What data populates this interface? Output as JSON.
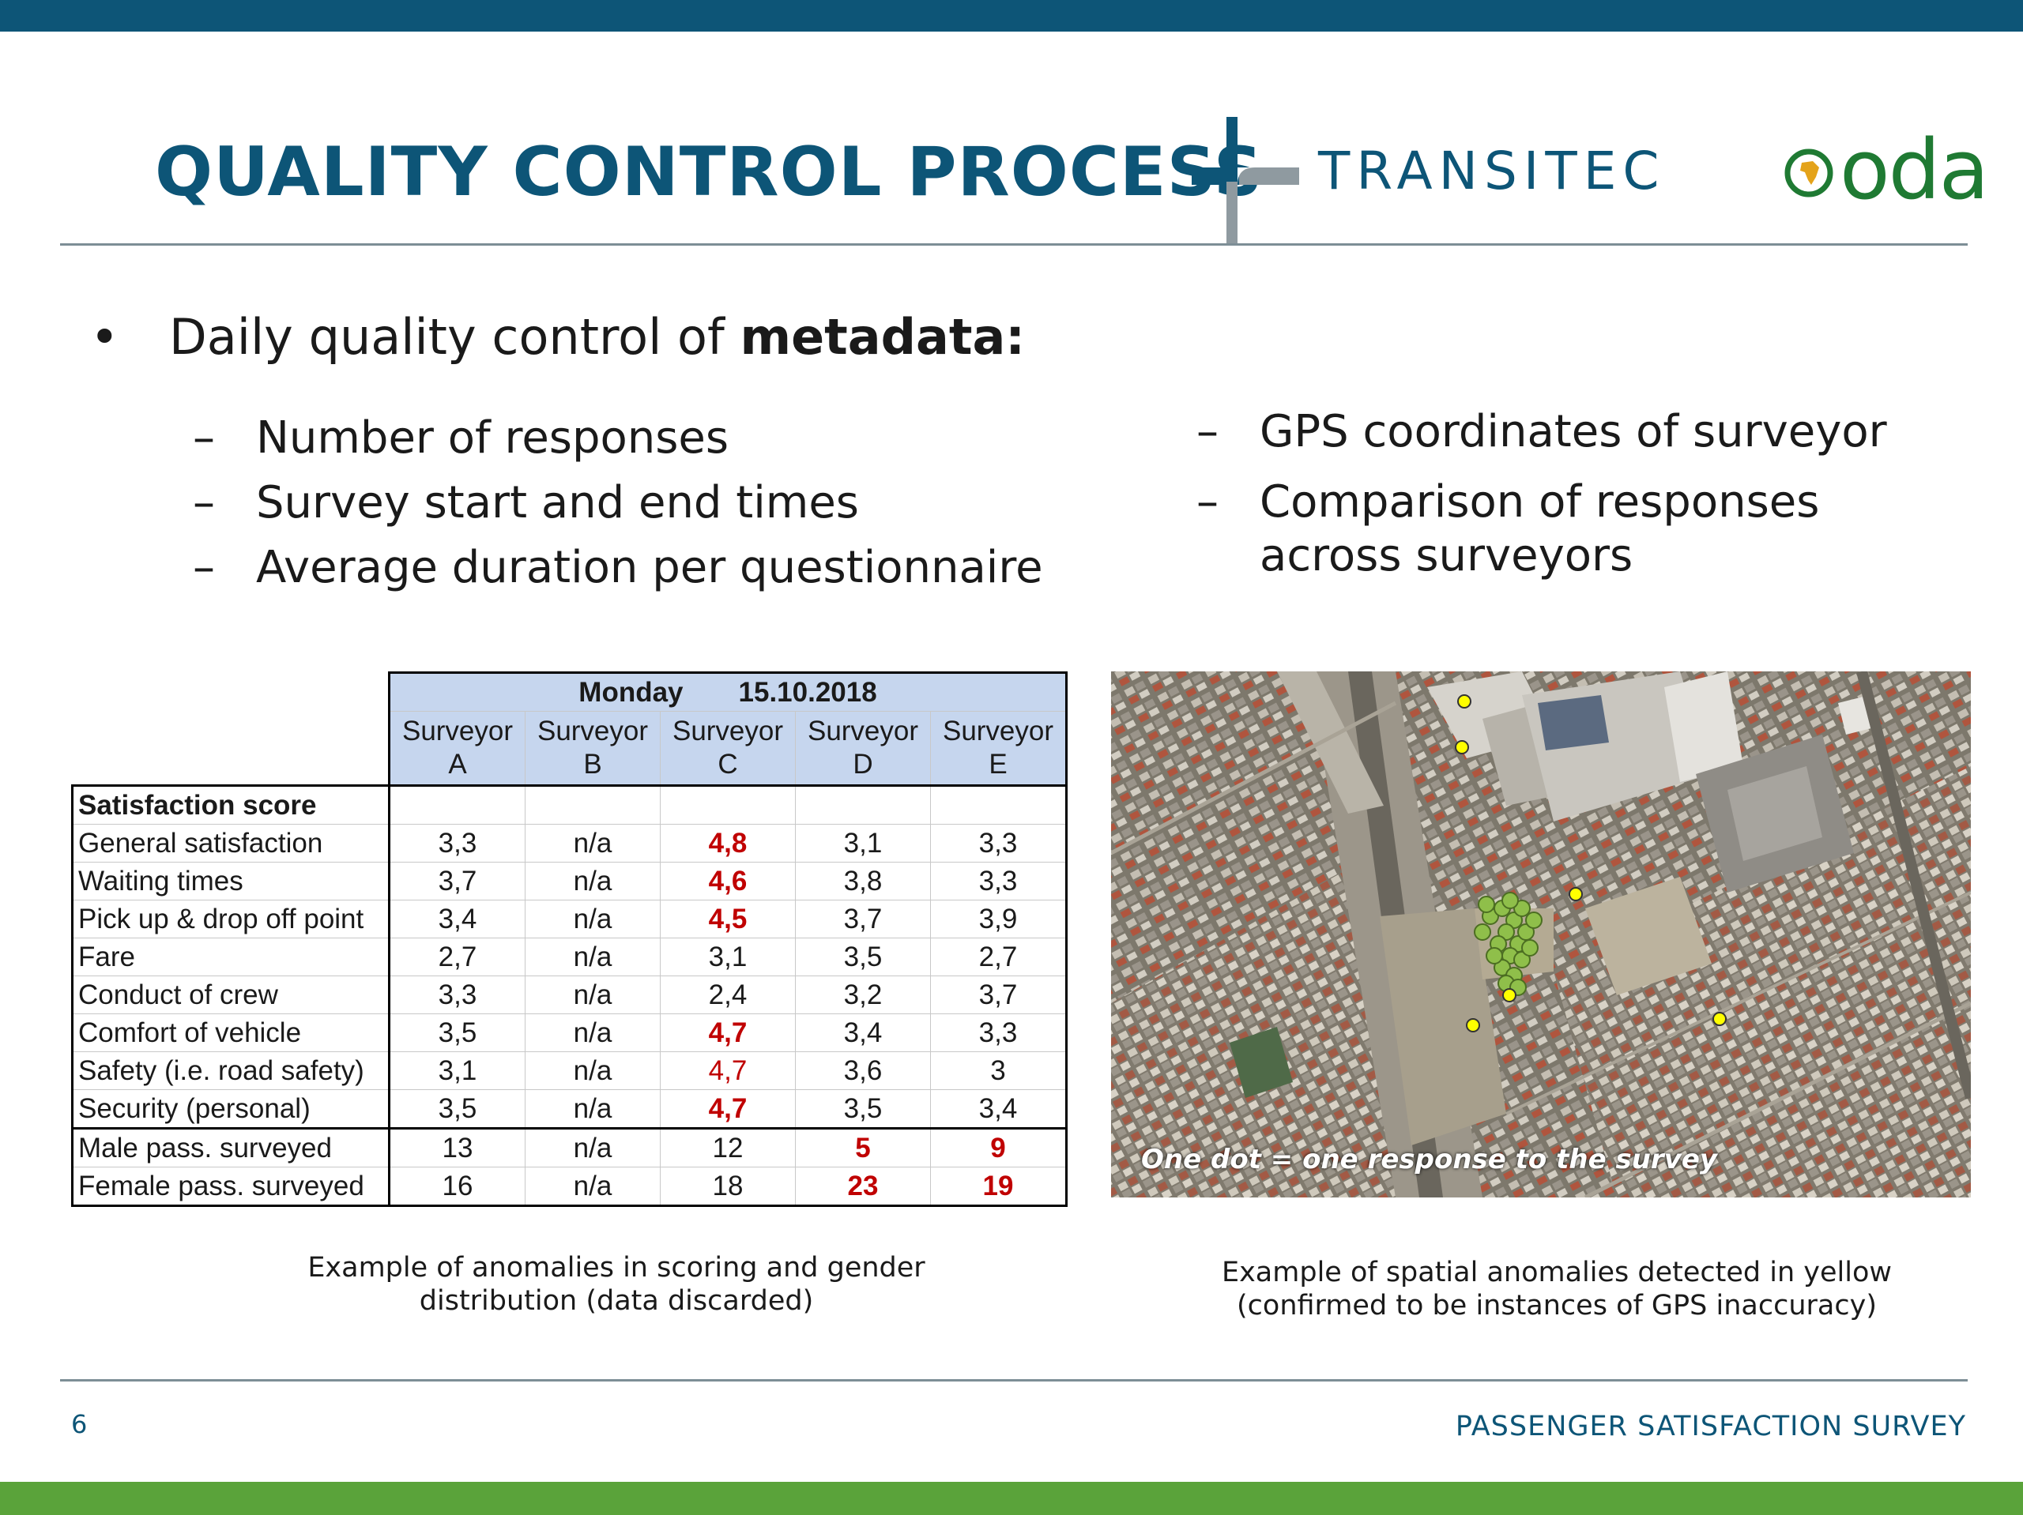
{
  "slide": {
    "title": "QUALITY CONTROL PROCESS",
    "page_number": "6",
    "footer_title": "PASSENGER SATISFACTION SURVEY",
    "colors": {
      "primary": "#0d5577",
      "accent_green": "#5aa33a",
      "highlight_red": "#c00000",
      "anomaly_yellow": "#ffff00"
    }
  },
  "logos": {
    "transitec": "TRANSITEC",
    "oda": "oda"
  },
  "main_bullet": {
    "prefix": "Daily quality control of ",
    "bold": "metadata:"
  },
  "sub_bullets_left": [
    "Number of responses",
    "Survey start and end times",
    "Average duration per questionnaire"
  ],
  "sub_bullets_right": [
    "GPS coordinates of surveyor",
    "Comparison of responses",
    "across surveyors"
  ],
  "table": {
    "day": "Monday",
    "date": "15.10.2018",
    "surveyors": [
      {
        "line1": "Surveyor",
        "line2": "A"
      },
      {
        "line1": "Surveyor",
        "line2": "B"
      },
      {
        "line1": "Surveyor",
        "line2": "C"
      },
      {
        "line1": "Surveyor",
        "line2": "D"
      },
      {
        "line1": "Surveyor",
        "line2": "E"
      }
    ],
    "section_label": "Satisfaction score",
    "rows": [
      {
        "label": "General satisfaction",
        "values": [
          "3,3",
          "n/a",
          "4,8",
          "3,1",
          "3,3"
        ]
      },
      {
        "label": "Waiting times",
        "values": [
          "3,7",
          "n/a",
          "4,6",
          "3,8",
          "3,3"
        ]
      },
      {
        "label": "Pick up & drop off point",
        "values": [
          "3,4",
          "n/a",
          "4,5",
          "3,7",
          "3,9"
        ]
      },
      {
        "label": "Fare",
        "values": [
          "2,7",
          "n/a",
          "3,1",
          "3,5",
          "2,7"
        ]
      },
      {
        "label": "Conduct of crew",
        "values": [
          "3,3",
          "n/a",
          "2,4",
          "3,2",
          "3,7"
        ]
      },
      {
        "label": "Comfort of vehicle",
        "values": [
          "3,5",
          "n/a",
          "4,7",
          "3,4",
          "3,3"
        ]
      },
      {
        "label": "Safety (i.e. road safety)",
        "values": [
          "3,1",
          "n/a",
          "4,7",
          "3,6",
          "3"
        ]
      },
      {
        "label": "Security (personal)",
        "values": [
          "3,5",
          "n/a",
          "4,7",
          "3,5",
          "3,4"
        ]
      },
      {
        "label": "Male pass. surveyed",
        "values": [
          "13",
          "n/a",
          "12",
          "5",
          "9"
        ]
      },
      {
        "label": "Female pass. surveyed",
        "values": [
          "16",
          "n/a",
          "18",
          "23",
          "19"
        ]
      }
    ]
  },
  "table_caption": {
    "line1": "Example of anomalies in scoring and gender",
    "line2": "distribution (data discarded)"
  },
  "map": {
    "overlay_text": "One dot = one response to the survey"
  },
  "map_caption": {
    "line1": "Example of spatial anomalies detected in yellow",
    "line2": "(confirmed to be instances of GPS inaccuracy)"
  }
}
